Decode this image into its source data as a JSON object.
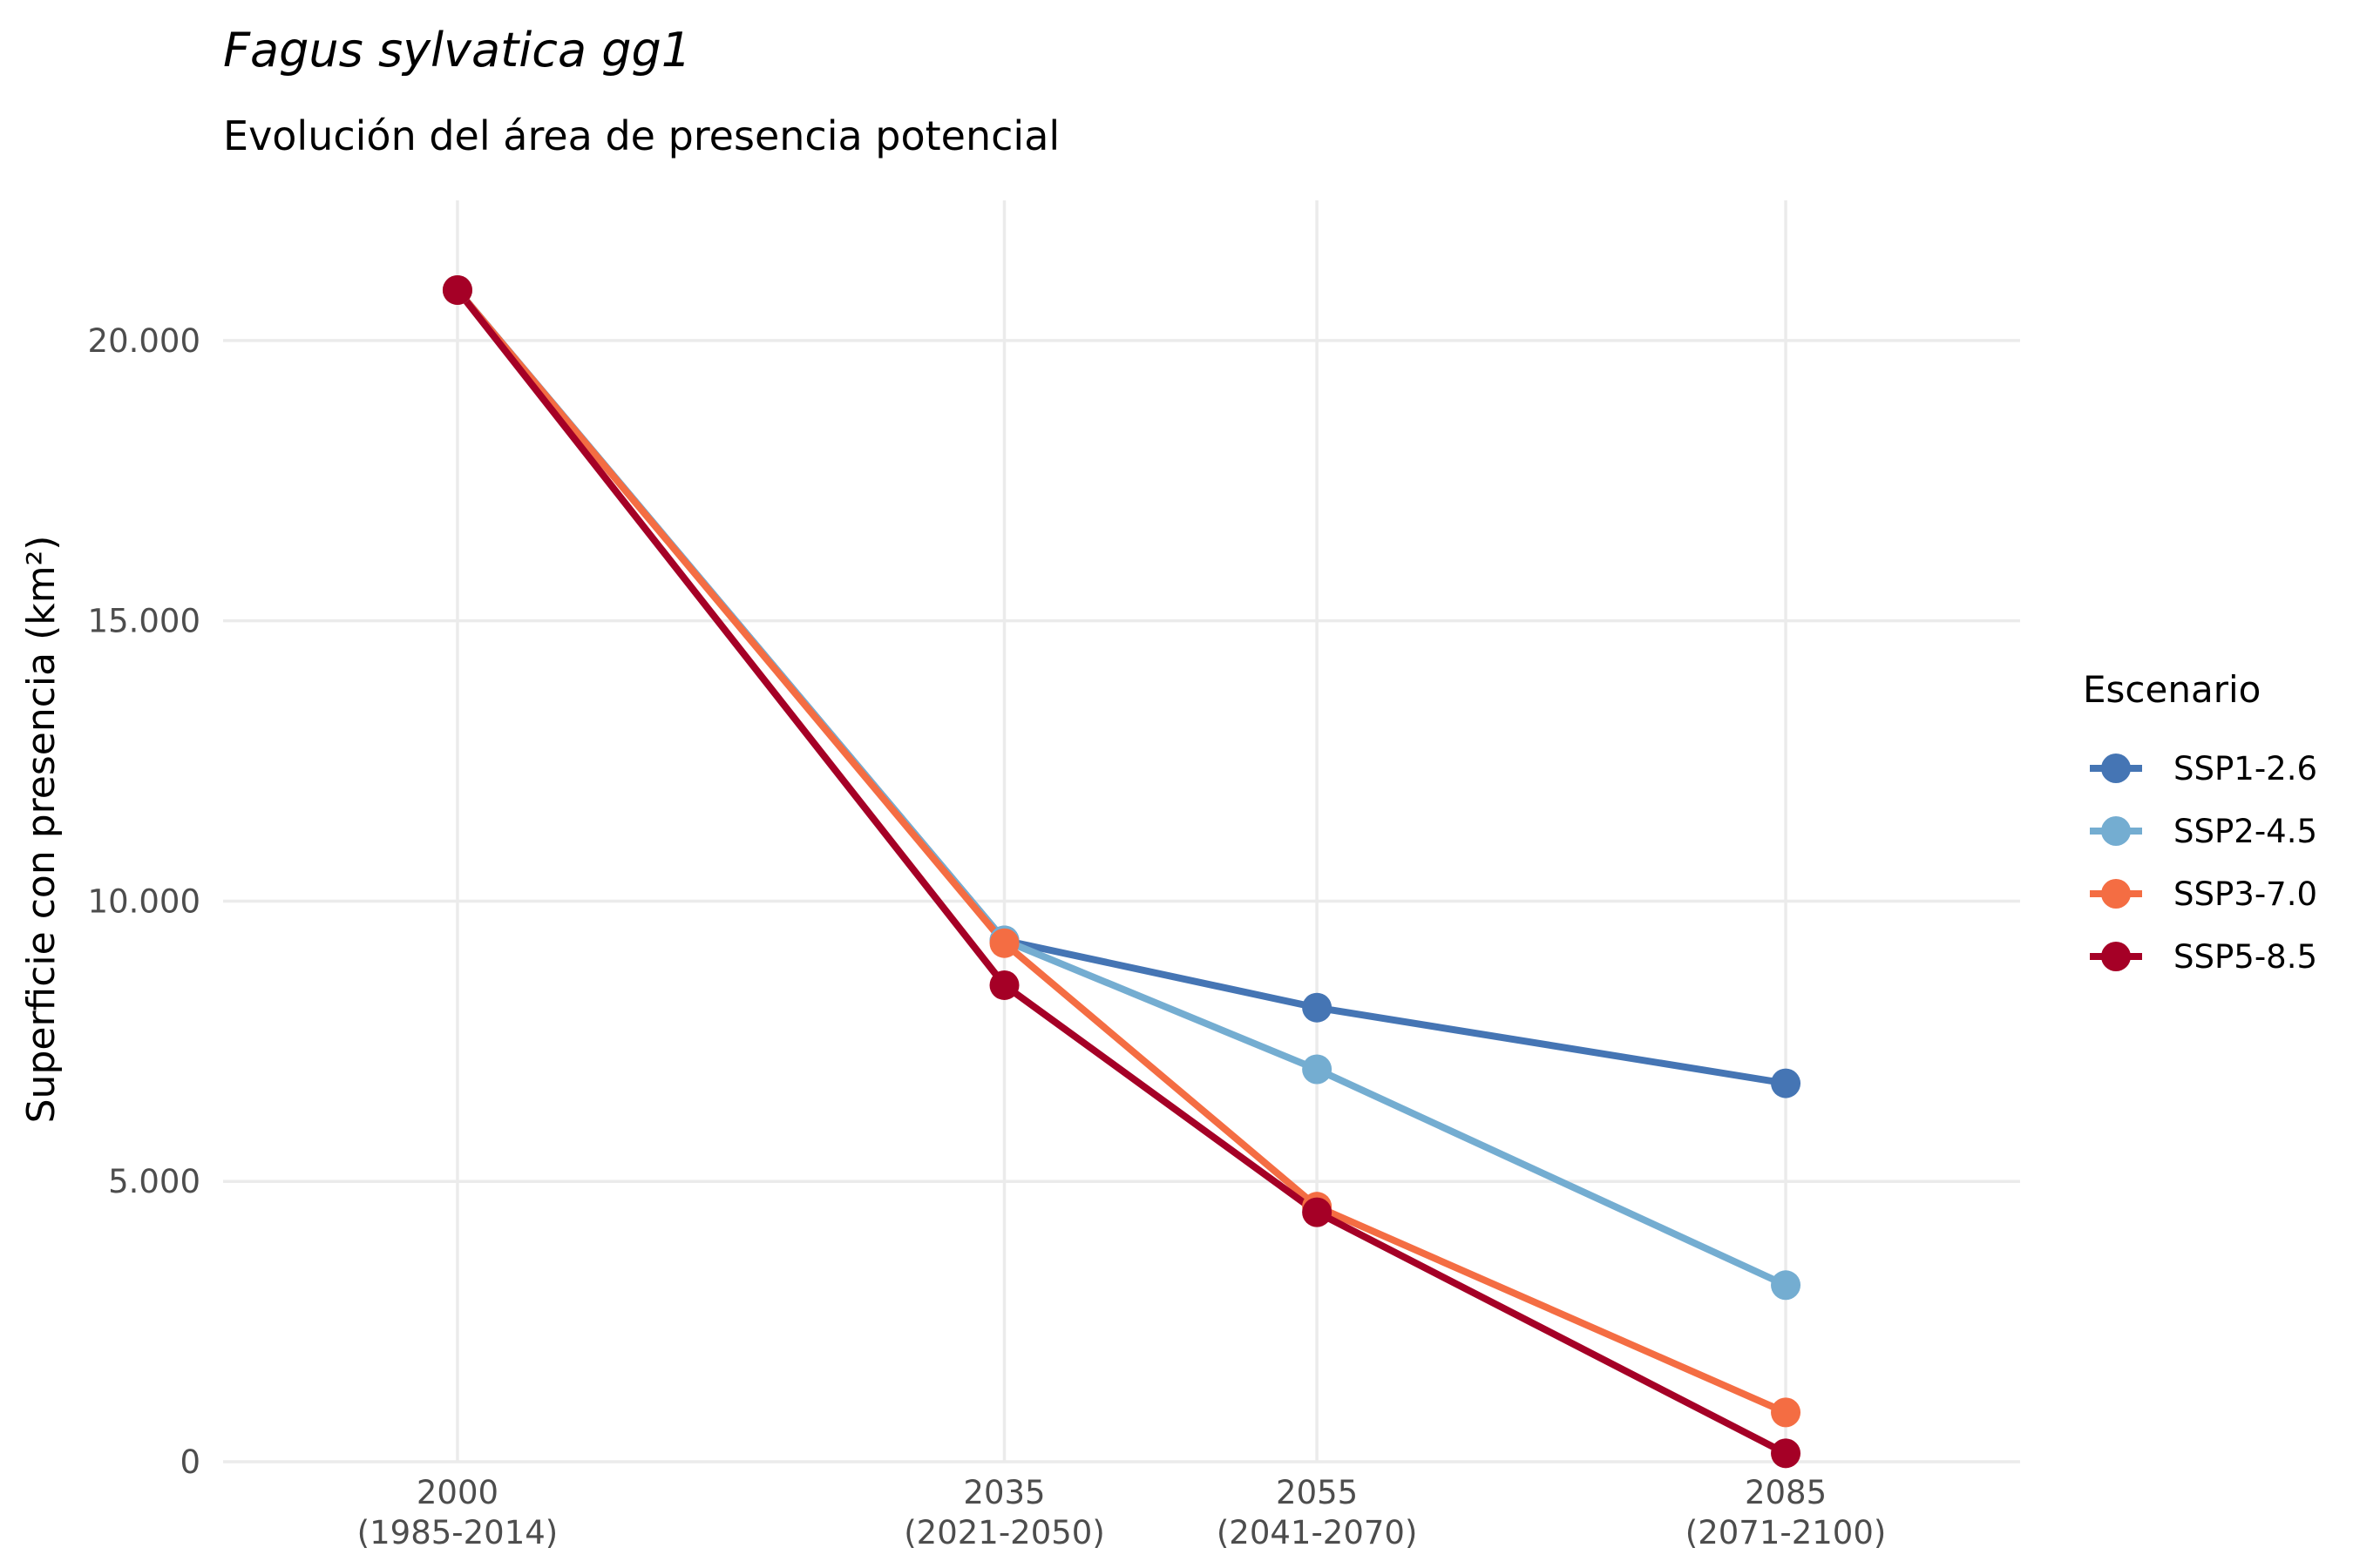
{
  "chart_data": {
    "type": "line",
    "title": "Fagus sylvatica gg1",
    "subtitle": "Evolución del área de presencia potencial",
    "xlabel": "",
    "ylabel": "Superficie con presencia (km²)",
    "x": [
      2000,
      2035,
      2055,
      2085
    ],
    "x_tick_labels": [
      {
        "year": "2000",
        "period": "(1985-2014)"
      },
      {
        "year": "2035",
        "period": "(2021-2050)"
      },
      {
        "year": "2055",
        "period": "(2041-2070)"
      },
      {
        "year": "2085",
        "period": "(2071-2100)"
      }
    ],
    "xlim": [
      1985,
      2100
    ],
    "ylim": [
      0,
      22500
    ],
    "y_ticks": [
      0,
      5000,
      10000,
      15000,
      20000
    ],
    "y_tick_labels": [
      "0",
      "5.000",
      "10.000",
      "15.000",
      "20.000"
    ],
    "grid": true,
    "legend": {
      "title": "Escenario",
      "position": "right"
    },
    "series": [
      {
        "name": "SSP1-2.6",
        "color": "#4575b4",
        "values": [
          20900,
          9300,
          8100,
          6750
        ]
      },
      {
        "name": "SSP2-4.5",
        "color": "#74add1",
        "values": [
          20900,
          9300,
          7000,
          3150
        ]
      },
      {
        "name": "SSP3-7.0",
        "color": "#f46d43",
        "values": [
          20900,
          9250,
          4550,
          880
        ]
      },
      {
        "name": "SSP5-8.5",
        "color": "#a50026",
        "values": [
          20900,
          8500,
          4450,
          150
        ]
      }
    ]
  }
}
